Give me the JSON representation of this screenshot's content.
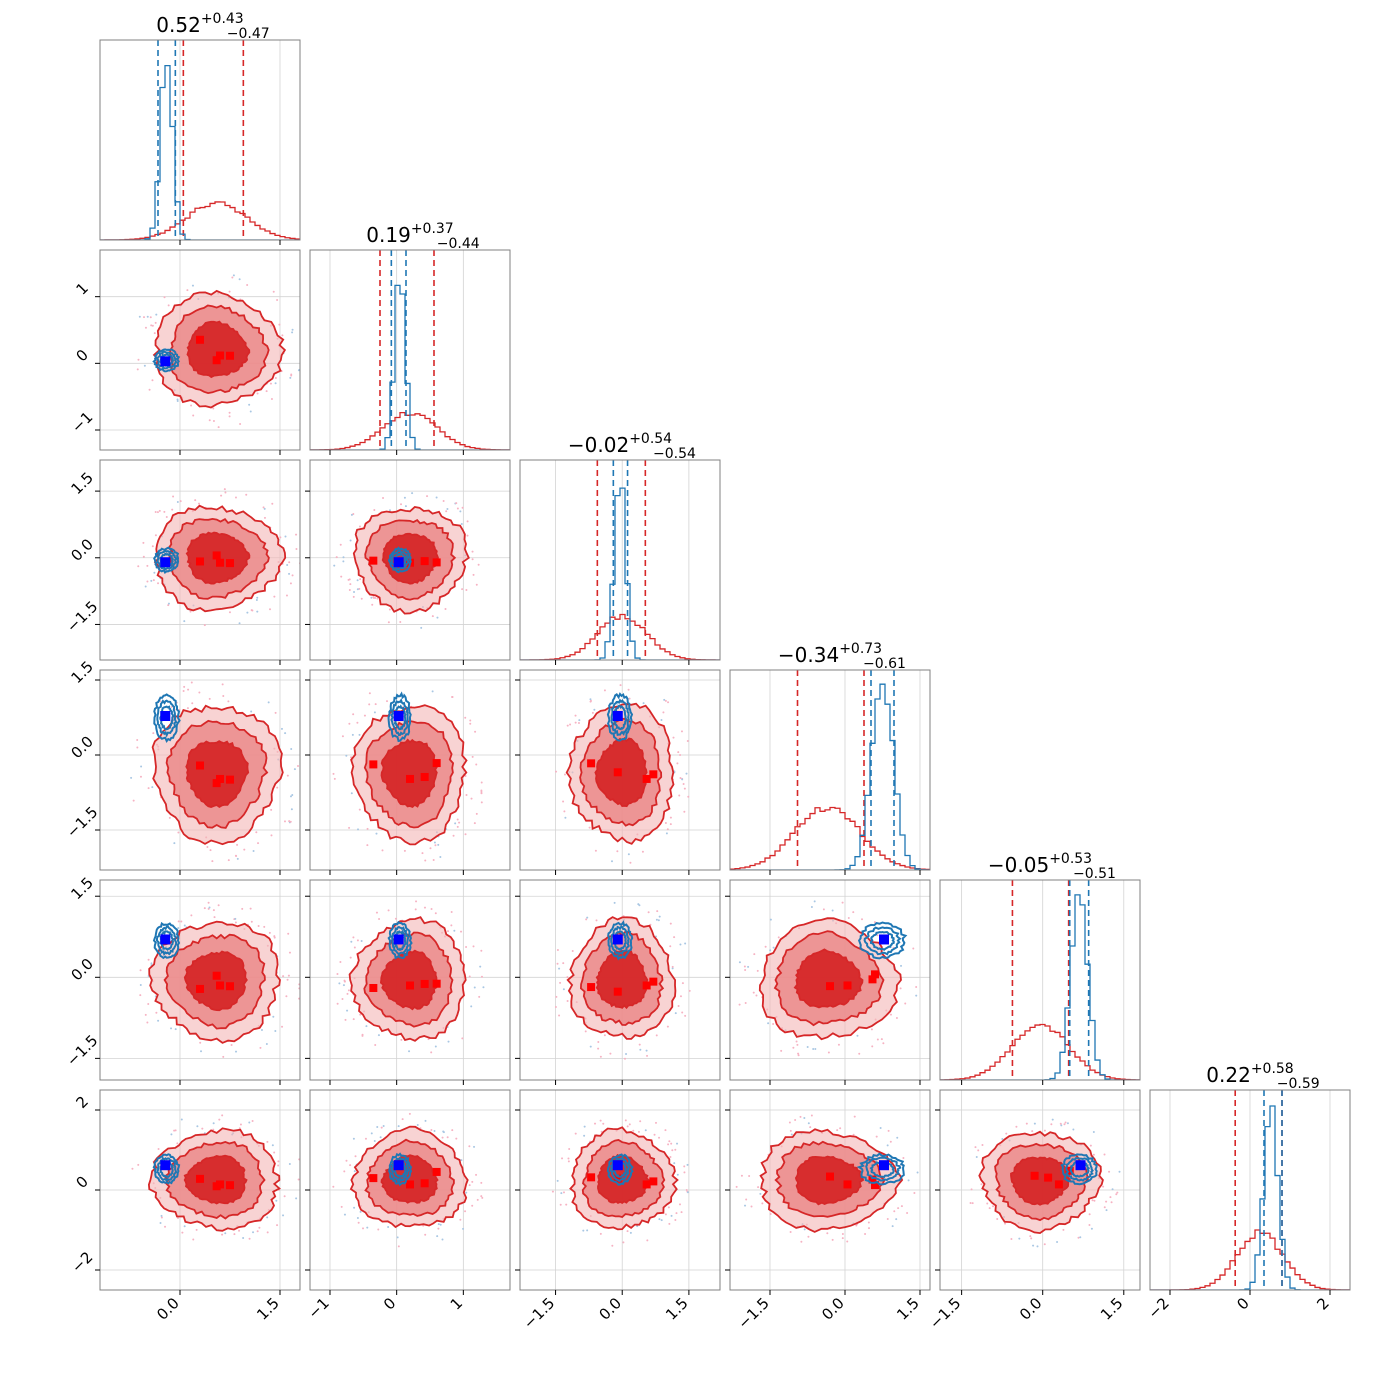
{
  "chart_data": {
    "type": "corner",
    "n_params": 6,
    "titles": [
      {
        "median": "0.52",
        "plus": "+0.43",
        "minus": "−0.47"
      },
      {
        "median": "0.19",
        "plus": "+0.37",
        "minus": "−0.44"
      },
      {
        "median": "−0.02",
        "plus": "+0.54",
        "minus": "−0.54"
      },
      {
        "median": "−0.34",
        "plus": "+0.73",
        "minus": "−0.61"
      },
      {
        "median": "−0.05",
        "plus": "+0.53",
        "minus": "−0.51"
      },
      {
        "median": "0.22",
        "plus": "+0.58",
        "minus": "−0.59"
      }
    ],
    "ranges": [
      [
        -1.2,
        1.8
      ],
      [
        -1.3,
        1.7
      ],
      [
        -2.3,
        2.2
      ],
      [
        -2.3,
        1.7
      ],
      [
        -1.9,
        1.8
      ],
      [
        -2.5,
        2.5
      ]
    ],
    "ticks": [
      [
        {
          "v": 0.0,
          "label": "0.0"
        },
        {
          "v": 1.5,
          "label": "1.5"
        }
      ],
      [
        {
          "v": -1,
          "label": "−1"
        },
        {
          "v": 0,
          "label": "0"
        },
        {
          "v": 1,
          "label": "1"
        }
      ],
      [
        {
          "v": -1.5,
          "label": "−1.5"
        },
        {
          "v": 0.0,
          "label": "0.0"
        },
        {
          "v": 1.5,
          "label": "1.5"
        }
      ],
      [
        {
          "v": -1.5,
          "label": "−1.5"
        },
        {
          "v": 0.0,
          "label": "0.0"
        },
        {
          "v": 1.5,
          "label": "1.5"
        }
      ],
      [
        {
          "v": -1.5,
          "label": "−1.5"
        },
        {
          "v": 0.0,
          "label": "0.0"
        },
        {
          "v": 1.5,
          "label": "1.5"
        }
      ],
      [
        {
          "v": -2,
          "label": "−2"
        },
        {
          "v": 0,
          "label": "0"
        },
        {
          "v": 2,
          "label": "2"
        }
      ]
    ],
    "series": [
      {
        "color": "#d62728",
        "means": [
          0.55,
          0.2,
          0.0,
          -0.35,
          -0.05,
          0.25
        ],
        "sigmas": [
          0.45,
          0.4,
          0.55,
          0.65,
          0.52,
          0.58
        ],
        "quantiles": [
          [
            0.05,
            0.95
          ],
          [
            -0.25,
            0.56
          ],
          [
            -0.56,
            0.52
          ],
          [
            -0.95,
            0.38
          ],
          [
            -0.56,
            0.48
          ],
          [
            -0.37,
            0.8
          ]
        ],
        "best_fit_points": [
          [
            0.6,
            0.75,
            0.55,
            0.3
          ],
          [
            0.2,
            0.42,
            0.6,
            -0.35
          ],
          [
            0.55,
            0.7,
            -0.1,
            -0.7,
            -0.3,
            -0.75,
            -0.1
          ],
          [
            0.05,
            0.55,
            0.6,
            -0.3,
            0.2,
            -0.6,
            0.9
          ],
          [
            0.3,
            0.1,
            0.5,
            -0.15,
            -0.7,
            -0.3,
            0.3
          ]
        ]
      },
      {
        "color": "#1f77b4",
        "means": [
          -0.2,
          0.05,
          -0.05,
          0.75,
          0.68,
          0.52
        ],
        "sigmas": [
          0.09,
          0.08,
          0.13,
          0.22,
          0.16,
          0.18
        ],
        "quantiles": [
          [
            -0.33,
            -0.07
          ],
          [
            -0.08,
            0.14
          ],
          [
            -0.2,
            0.12
          ],
          [
            0.52,
            0.98
          ],
          [
            0.5,
            0.85
          ],
          [
            0.35,
            0.8
          ]
        ],
        "truth": [
          -0.22,
          0.03,
          -0.1,
          0.78,
          0.7,
          0.62
        ]
      }
    ]
  }
}
